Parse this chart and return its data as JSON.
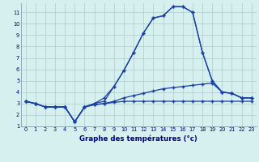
{
  "title": "Graphe des températures (°c)",
  "bg_color": "#d6f0f0",
  "grid_color": "#b0c8c8",
  "line_color": "#1a3fa0",
  "x_hours": [
    0,
    1,
    2,
    3,
    4,
    5,
    6,
    7,
    8,
    9,
    10,
    11,
    12,
    13,
    14,
    15,
    16,
    17,
    18,
    19,
    20,
    21,
    22,
    23
  ],
  "series_main": [
    3.2,
    3.0,
    2.7,
    2.7,
    2.7,
    1.4,
    2.7,
    3.0,
    3.2,
    4.5,
    5.9,
    7.5,
    9.2,
    10.5,
    10.7,
    11.5,
    11.5,
    11.0,
    7.5,
    5.0,
    4.0,
    3.9,
    3.5,
    3.5
  ],
  "series_min": [
    3.2,
    3.0,
    2.7,
    2.7,
    2.7,
    1.4,
    2.7,
    2.9,
    3.0,
    3.1,
    3.2,
    3.2,
    3.2,
    3.2,
    3.2,
    3.2,
    3.2,
    3.2,
    3.2,
    3.2,
    3.2,
    3.2,
    3.2,
    3.2
  ],
  "series_max": [
    3.2,
    3.0,
    2.7,
    2.7,
    2.7,
    1.4,
    2.7,
    3.0,
    3.5,
    4.5,
    5.9,
    7.5,
    9.2,
    10.5,
    10.7,
    11.5,
    11.5,
    11.0,
    7.5,
    5.0,
    4.0,
    3.9,
    3.5,
    3.5
  ],
  "series_avg": [
    3.2,
    3.0,
    2.7,
    2.7,
    2.7,
    1.4,
    2.7,
    2.9,
    3.0,
    3.2,
    3.5,
    3.7,
    3.9,
    4.1,
    4.3,
    4.4,
    4.5,
    4.6,
    4.7,
    4.8,
    4.0,
    3.9,
    3.5,
    3.5
  ],
  "ylim": [
    1,
    11.8
  ],
  "yticks": [
    1,
    2,
    3,
    4,
    5,
    6,
    7,
    8,
    9,
    10,
    11
  ],
  "xlim": [
    -0.5,
    23.5
  ],
  "xticks": [
    0,
    1,
    2,
    3,
    4,
    5,
    6,
    7,
    8,
    9,
    10,
    11,
    12,
    13,
    14,
    15,
    16,
    17,
    18,
    19,
    20,
    21,
    22,
    23
  ]
}
